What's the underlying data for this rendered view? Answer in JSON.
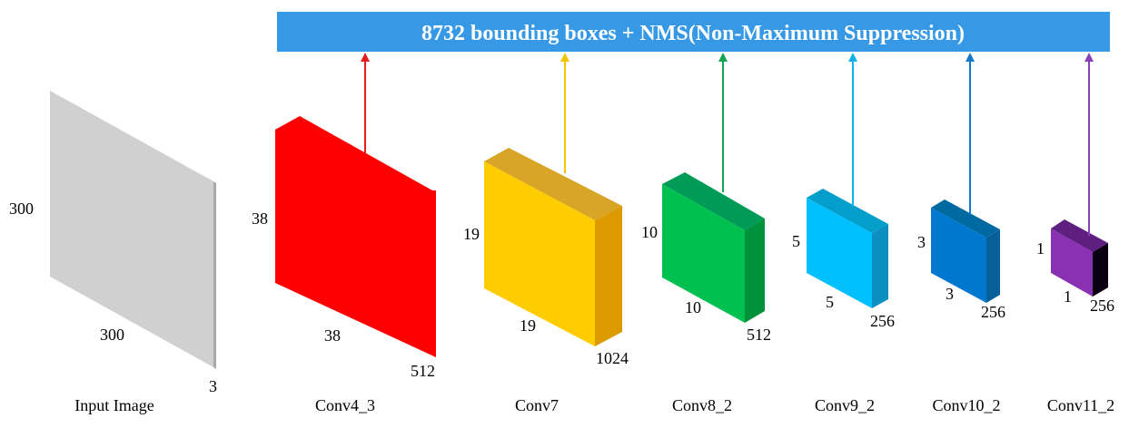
{
  "banner": {
    "text": "8732 bounding boxes + NMS(Non-Maximum Suppression)",
    "color": "#3799e6"
  },
  "input_image": {
    "name": "Input Image",
    "height": "300",
    "width": "300",
    "depth": "3",
    "colors": {
      "face": "#d0d0d0",
      "edge": "#a9a9a9"
    }
  },
  "layers": [
    {
      "name": "Conv4_3",
      "height": "38",
      "width": "38",
      "depth": "512",
      "colors": {
        "front": "#ff0000",
        "top": "#ff0000",
        "side": "#ff0000",
        "arrow": "#e81c1c"
      }
    },
    {
      "name": "Conv7",
      "height": "19",
      "width": "19",
      "depth": "1024",
      "colors": {
        "front": "#ffcc00",
        "top": "#d9a527",
        "side": "#dc9a00",
        "arrow": "#f5c400"
      }
    },
    {
      "name": "Conv8_2",
      "height": "10",
      "width": "10",
      "depth": "512",
      "colors": {
        "front": "#00c050",
        "top": "#009c57",
        "side": "#00923a",
        "arrow": "#10a550"
      }
    },
    {
      "name": "Conv9_2",
      "height": "5",
      "width": "5",
      "depth": "256",
      "colors": {
        "front": "#00c0ff",
        "top": "#049ecb",
        "side": "#0b8ec0",
        "arrow": "#10b0e8"
      }
    },
    {
      "name": "Conv10_2",
      "height": "3",
      "width": "3",
      "depth": "256",
      "colors": {
        "front": "#0078d0",
        "top": "#006aa0",
        "side": "#075f9a",
        "arrow": "#1478c8"
      }
    },
    {
      "name": "Conv11_2",
      "height": "1",
      "width": "1",
      "depth": "256",
      "colors": {
        "front": "#8a30b2",
        "top": "#5e1f80",
        "side": "#0a0012",
        "arrow": "#8a40b8"
      }
    }
  ]
}
